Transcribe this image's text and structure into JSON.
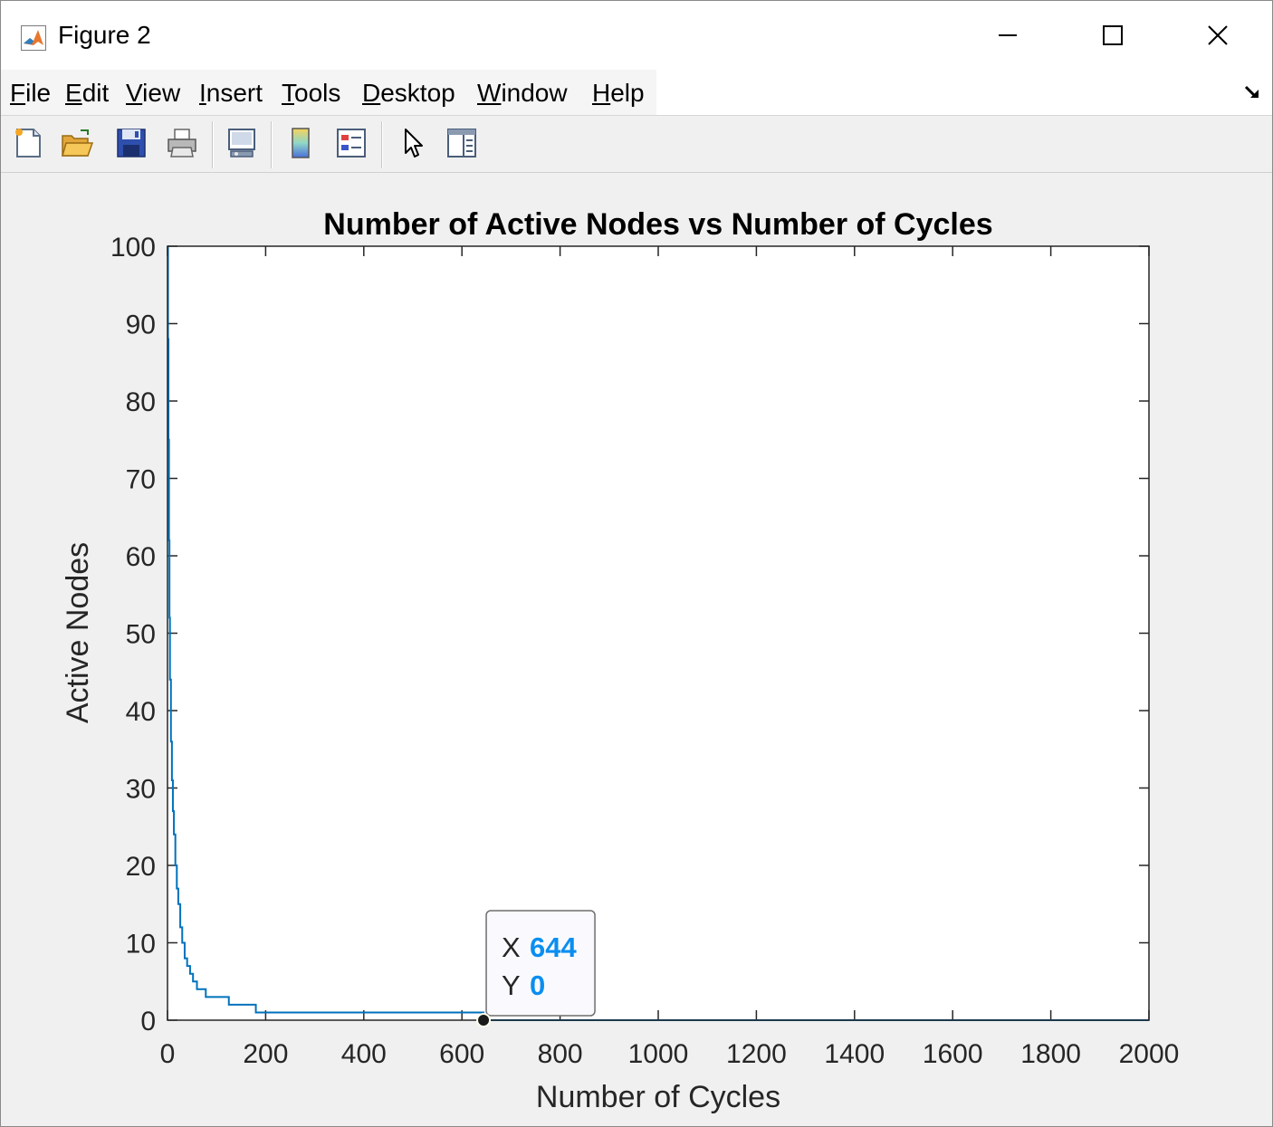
{
  "window": {
    "title": "Figure 2",
    "icon": "matlab-icon"
  },
  "menu": [
    {
      "label": "File",
      "mnemonic": "F",
      "rest": "ile"
    },
    {
      "label": "Edit",
      "mnemonic": "E",
      "rest": "dit"
    },
    {
      "label": "View",
      "mnemonic": "V",
      "rest": "iew"
    },
    {
      "label": "Insert",
      "mnemonic": "I",
      "rest": "nsert"
    },
    {
      "label": "Tools",
      "mnemonic": "T",
      "rest": "ools"
    },
    {
      "label": "Desktop",
      "mnemonic": "D",
      "rest": "esktop"
    },
    {
      "label": "Window",
      "mnemonic": "W",
      "rest": "indow"
    },
    {
      "label": "Help",
      "mnemonic": "H",
      "rest": "elp"
    }
  ],
  "toolbar": [
    "new-figure-icon",
    "open-file-icon",
    "save-icon",
    "print-icon",
    "link-plot-icon",
    "colorbar-icon",
    "legend-icon",
    "edit-plot-icon",
    "property-inspector-icon"
  ],
  "colors": {
    "line": "#0072bd",
    "datatip_value": "#0a8ef0"
  },
  "chart_data": {
    "type": "line",
    "title": "Number of Active Nodes vs Number of Cycles",
    "xlabel": "Number of Cycles",
    "ylabel": "Active Nodes",
    "xlim": [
      0,
      2000
    ],
    "ylim": [
      0,
      100
    ],
    "xticks": [
      0,
      200,
      400,
      600,
      800,
      1000,
      1200,
      1400,
      1600,
      1800,
      2000
    ],
    "yticks": [
      0,
      10,
      20,
      30,
      40,
      50,
      60,
      70,
      80,
      90,
      100
    ],
    "grid": false,
    "step": true,
    "series": [
      {
        "x": [
          0,
          1,
          2,
          3,
          4,
          5,
          7,
          9,
          11,
          13,
          16,
          19,
          22,
          26,
          30,
          35,
          40,
          46,
          52,
          60,
          68,
          78,
          90,
          125,
          180,
          640,
          644,
          2000
        ],
        "y": [
          100,
          88,
          75,
          62,
          52,
          44,
          36,
          31,
          27,
          24,
          20,
          17,
          15,
          12,
          10,
          8,
          7,
          6,
          5,
          4,
          4,
          3,
          3,
          2,
          1,
          1,
          0,
          0
        ]
      }
    ],
    "datatip": {
      "x": 644,
      "y": 0,
      "x_label": "X",
      "y_label": "Y"
    }
  }
}
